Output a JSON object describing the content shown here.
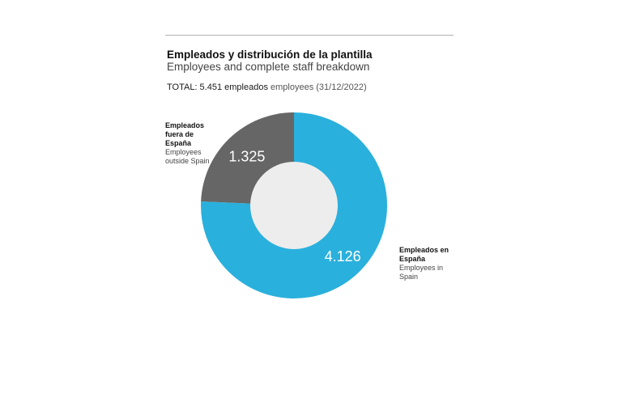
{
  "title_es": "Empleados y distribución de la plantilla",
  "title_en": "Employees and complete staff breakdown",
  "total": {
    "label": "TOTAL: 5.451 empleados",
    "label_en": "employees (31/12/2022)"
  },
  "chart_data": {
    "type": "pie",
    "donut": true,
    "title": "Empleados y distribución de la plantilla",
    "subtitle": "Employees and complete staff breakdown",
    "total": 5451,
    "date": "31/12/2022",
    "slices": [
      {
        "key": "spain",
        "value": 4126,
        "value_label": "4.126",
        "label_es": "Empleados en España",
        "label_en": "Employees in Spain",
        "color": "#2ab0dc"
      },
      {
        "key": "outside",
        "value": 1325,
        "value_label": "1.325",
        "label_es": "Empleados fuera de España",
        "label_en": "Employees outside Spain",
        "color": "#666666"
      }
    ],
    "hole_color": "#ededed"
  }
}
